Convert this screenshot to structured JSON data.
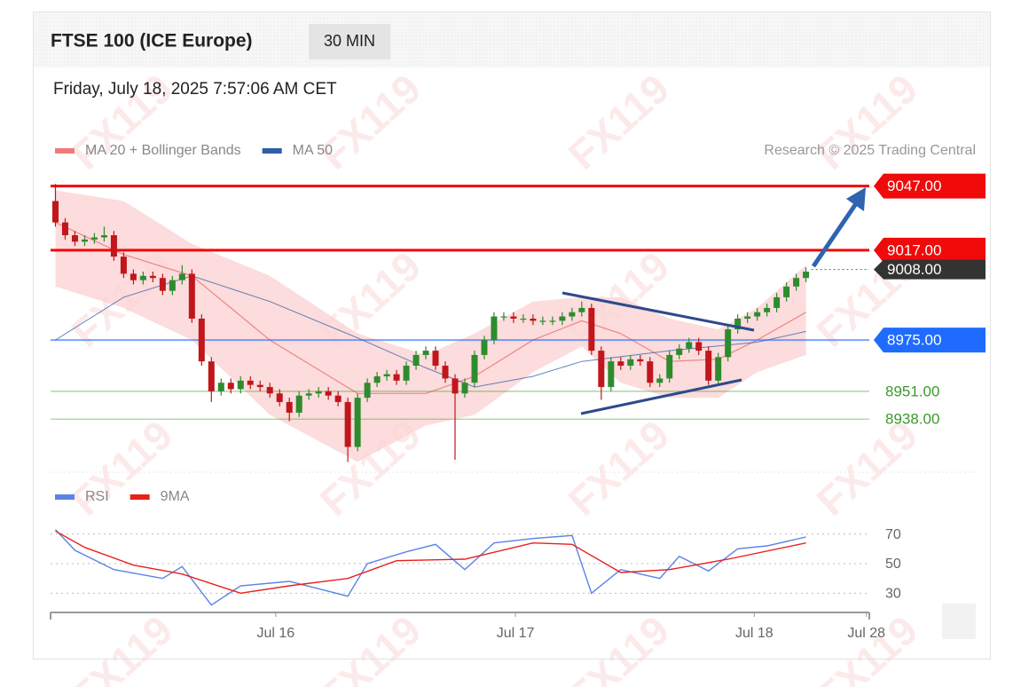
{
  "header": {
    "title": "FTSE 100 (ICE Europe)",
    "interval": "30 MIN",
    "timestamp": "Friday, July 18, 2025 7:57:06 AM CET",
    "credit": "Research © 2025 Trading Central"
  },
  "watermark": "FX119",
  "chart_data": [
    {
      "type": "candlestick",
      "open": [
        9040,
        9030,
        9024,
        9021,
        9022,
        9023,
        9024,
        9014,
        9006,
        9003,
        9005,
        9004,
        8998,
        9003,
        9006,
        8985,
        8965,
        8951,
        8955,
        8952,
        8956,
        8954,
        8953,
        8950,
        8946,
        8941,
        8949,
        8950,
        8951,
        8949,
        8946,
        8925,
        8948,
        8955,
        8958,
        8959,
        8956,
        8963,
        8968,
        8970,
        8963,
        8957,
        8950,
        8955,
        8968,
        8975,
        8986,
        8986,
        8985,
        8985,
        8984,
        8984,
        8984,
        8986,
        8988,
        8990,
        8970,
        8953,
        8965,
        8963,
        8966,
        8965,
        8955,
        8957,
        8968,
        8971,
        8974,
        8970,
        8956,
        8967,
        8980,
        8985,
        8986,
        8988,
        8990,
        8995,
        9000,
        9004
      ],
      "high": [
        9048,
        9032,
        9026,
        9024,
        9025,
        9028,
        9026,
        9016,
        9008,
        9007,
        9007,
        9006,
        9005,
        9010,
        9008,
        8987,
        8967,
        8957,
        8957,
        8958,
        8958,
        8956,
        8955,
        8952,
        8948,
        8951,
        8952,
        8953,
        8953,
        8951,
        8948,
        8950,
        8957,
        8960,
        8961,
        8961,
        8965,
        8970,
        8972,
        8972,
        8965,
        8959,
        8957,
        8970,
        8977,
        8988,
        8988,
        8988,
        8987,
        8987,
        8986,
        8986,
        8988,
        8990,
        8993,
        8992,
        8972,
        8967,
        8967,
        8968,
        8968,
        8967,
        8959,
        8970,
        8973,
        8976,
        8976,
        8972,
        8969,
        8982,
        8987,
        8988,
        8990,
        8992,
        8997,
        9002,
        9006,
        9009
      ],
      "low": [
        9028,
        9022,
        9019,
        9019,
        9020,
        9021,
        9012,
        9004,
        9001,
        9001,
        9002,
        8996,
        8996,
        9001,
        8983,
        8963,
        8946,
        8949,
        8950,
        8950,
        8952,
        8951,
        8948,
        8944,
        8937,
        8939,
        8947,
        8948,
        8947,
        8944,
        8918,
        8923,
        8946,
        8953,
        8956,
        8954,
        8954,
        8961,
        8966,
        8961,
        8955,
        8919,
        8948,
        8953,
        8966,
        8973,
        8984,
        8983,
        8983,
        8982,
        8982,
        8982,
        8982,
        8984,
        8986,
        8968,
        8947,
        8951,
        8961,
        8961,
        8963,
        8953,
        8953,
        8955,
        8966,
        8969,
        8968,
        8954,
        8954,
        8965,
        8978,
        8983,
        8984,
        8986,
        8988,
        8993,
        8998,
        9002
      ],
      "close": [
        9030,
        9024,
        9021,
        9022,
        9023,
        9024,
        9014,
        9006,
        9003,
        9005,
        9004,
        8998,
        9003,
        9006,
        8985,
        8965,
        8951,
        8955,
        8952,
        8956,
        8954,
        8953,
        8950,
        8946,
        8941,
        8949,
        8950,
        8951,
        8949,
        8946,
        8925,
        8948,
        8955,
        8958,
        8959,
        8956,
        8963,
        8968,
        8970,
        8963,
        8957,
        8950,
        8955,
        8968,
        8975,
        8986,
        8986,
        8985,
        8985,
        8984,
        8984,
        8984,
        8986,
        8988,
        8990,
        8970,
        8953,
        8965,
        8963,
        8966,
        8965,
        8955,
        8957,
        8968,
        8971,
        8974,
        8970,
        8956,
        8967,
        8980,
        8985,
        8986,
        8988,
        8990,
        8995,
        9000,
        9004,
        9007
      ],
      "up_color": "#2e8b2e",
      "down_color": "#c0161c",
      "series": [
        {
          "name": "MA 20 + Bollinger Bands",
          "color": "#f07a7a",
          "band_color": "#fcd6d6",
          "x": [
            0,
            7,
            14,
            22,
            31,
            38,
            43,
            49,
            54,
            58,
            63,
            68,
            72,
            77
          ],
          "values": [
            9030,
            9015,
            9005,
            8975,
            8950,
            8950,
            8958,
            8975,
            8984,
            8978,
            8965,
            8966,
            8975,
            8988
          ],
          "upper": [
            9045,
            9040,
            9020,
            9005,
            8978,
            8968,
            8978,
            8993,
            8995,
            8995,
            8985,
            8980,
            8990,
            9010
          ],
          "lower": [
            9000,
            8990,
            8975,
            8940,
            8918,
            8935,
            8940,
            8960,
            8972,
            8955,
            8948,
            8948,
            8960,
            8968
          ]
        },
        {
          "name": "MA 50",
          "color": "#2f5ea8",
          "x": [
            0,
            7,
            14,
            22,
            31,
            38,
            43,
            49,
            54,
            63,
            72,
            77
          ],
          "values": [
            8975,
            8995,
            9005,
            8993,
            8976,
            8962,
            8953,
            8958,
            8965,
            8970,
            8974,
            8979
          ]
        }
      ],
      "levels": [
        {
          "value": 9047,
          "label": "9047.00",
          "color": "#f00a0a",
          "badge": true
        },
        {
          "value": 9017,
          "label": "9017.00",
          "color": "#f00a0a",
          "badge": true
        },
        {
          "value": 8975,
          "label": "8975.00",
          "color": "#1f6bff",
          "badge": true
        },
        {
          "value": 8951,
          "label": "8951.00",
          "color": "#3a9a2c",
          "badge": false
        },
        {
          "value": 8938,
          "label": "8938.00",
          "color": "#3a9a2c",
          "badge": false
        }
      ],
      "last_price": {
        "value": 9008,
        "label": "9008.00",
        "color": "#333333"
      },
      "xlim": [
        -0.5,
        83.5
      ],
      "ylim": [
        8914,
        9051
      ]
    },
    {
      "type": "line",
      "series": [
        {
          "name": "RSI",
          "color": "#5b82e6",
          "x": [
            0,
            2,
            6,
            11,
            13,
            16,
            19,
            24,
            30,
            32,
            36,
            39,
            42,
            45,
            49,
            53,
            55,
            58,
            62,
            64,
            67,
            70,
            73,
            77
          ],
          "values": [
            73,
            59,
            46,
            40,
            48,
            22,
            35,
            38,
            28,
            50,
            58,
            63,
            46,
            64,
            67,
            69,
            30,
            46,
            40,
            55,
            45,
            60,
            62,
            68
          ]
        },
        {
          "name": "9MA",
          "color": "#e8201c",
          "x": [
            0,
            3,
            8,
            13,
            19,
            24,
            30,
            35,
            42,
            49,
            53,
            58,
            63,
            69,
            77
          ],
          "values": [
            72,
            61,
            49,
            43,
            30,
            35,
            40,
            52,
            53,
            64,
            63,
            44,
            46,
            53,
            64
          ]
        }
      ],
      "xlim": [
        -0.5,
        83.5
      ],
      "xticks": [
        {
          "value": 22.6,
          "label": "Jul 16"
        },
        {
          "value": 47.2,
          "label": "Jul 17"
        },
        {
          "value": 71.7,
          "label": "Jul 18"
        },
        {
          "value": 83.2,
          "label": "Jul 28"
        }
      ],
      "ylim": [
        20,
        77
      ],
      "yticks": [
        30,
        50,
        70
      ],
      "grid": true
    }
  ]
}
